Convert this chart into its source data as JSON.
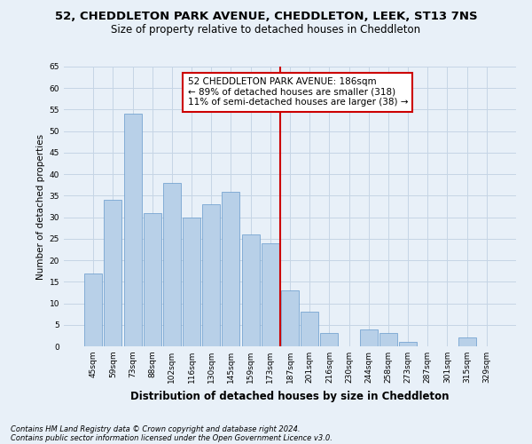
{
  "title_line1": "52, CHEDDLETON PARK AVENUE, CHEDDLETON, LEEK, ST13 7NS",
  "title_line2": "Size of property relative to detached houses in Cheddleton",
  "xlabel": "Distribution of detached houses by size in Cheddleton",
  "ylabel": "Number of detached properties",
  "categories": [
    "45sqm",
    "59sqm",
    "73sqm",
    "88sqm",
    "102sqm",
    "116sqm",
    "130sqm",
    "145sqm",
    "159sqm",
    "173sqm",
    "187sqm",
    "201sqm",
    "216sqm",
    "230sqm",
    "244sqm",
    "258sqm",
    "273sqm",
    "287sqm",
    "301sqm",
    "315sqm",
    "329sqm"
  ],
  "values": [
    17,
    34,
    54,
    31,
    38,
    30,
    33,
    36,
    26,
    24,
    13,
    8,
    3,
    0,
    4,
    3,
    1,
    0,
    0,
    2,
    0
  ],
  "bar_color": "#b8d0e8",
  "bar_edge_color": "#6699cc",
  "grid_color": "#c5d5e5",
  "bg_color": "#e8f0f8",
  "vline_color": "#cc0000",
  "annotation_text": "52 CHEDDLETON PARK AVENUE: 186sqm\n← 89% of detached houses are smaller (318)\n11% of semi-detached houses are larger (38) →",
  "annotation_box_color": "#ffffff",
  "annotation_box_edge": "#cc0000",
  "ylim": [
    0,
    65
  ],
  "yticks": [
    0,
    5,
    10,
    15,
    20,
    25,
    30,
    35,
    40,
    45,
    50,
    55,
    60,
    65
  ],
  "footer_line1": "Contains HM Land Registry data © Crown copyright and database right 2024.",
  "footer_line2": "Contains public sector information licensed under the Open Government Licence v3.0.",
  "title_fontsize": 9.5,
  "subtitle_fontsize": 8.5,
  "ylabel_fontsize": 7.5,
  "xlabel_fontsize": 8.5,
  "tick_fontsize": 6.5,
  "annotation_fontsize": 7.5,
  "footer_fontsize": 6.0
}
